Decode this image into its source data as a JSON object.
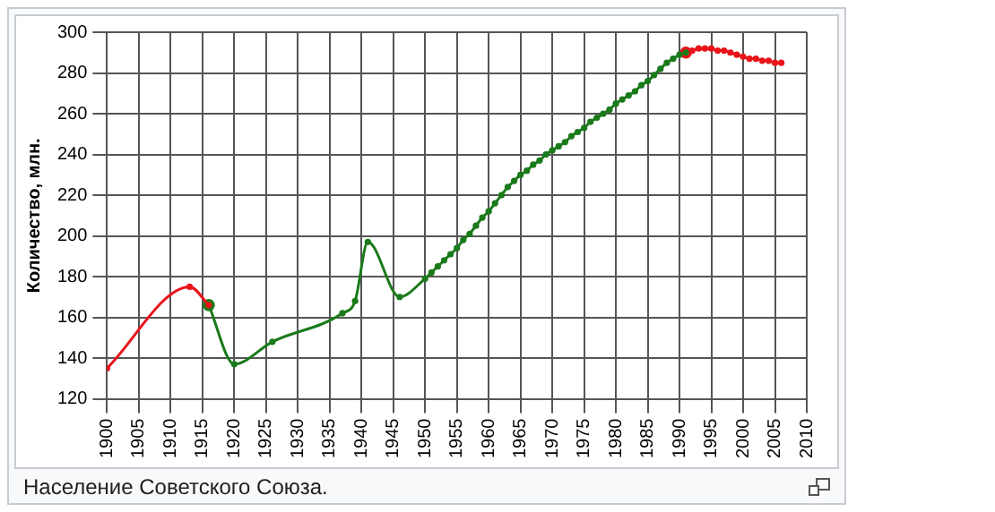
{
  "chart_data": {
    "type": "line",
    "ylabel": "Количество, млн.",
    "xlim": [
      1900,
      2010
    ],
    "xticks": [
      1900,
      1905,
      1910,
      1915,
      1920,
      1925,
      1930,
      1935,
      1940,
      1945,
      1950,
      1955,
      1960,
      1965,
      1970,
      1975,
      1980,
      1985,
      1990,
      1995,
      2000,
      2005,
      2010
    ],
    "ylim": [
      120,
      300
    ],
    "yticks": [
      120,
      140,
      160,
      180,
      200,
      220,
      240,
      260,
      280,
      300
    ],
    "grid": true,
    "legend": false,
    "marker": "circle",
    "line_style": "solid",
    "annotations": [
      "Население Советского Союза."
    ],
    "series": [
      {
        "color": "#e8141a",
        "x": [
          1900,
          1913,
          1916
        ],
        "values": [
          135,
          175,
          166
        ]
      },
      {
        "color": "#1a7a1a",
        "x": [
          1916,
          1920,
          1926,
          1937,
          1939,
          1941,
          1946,
          1950,
          1951,
          1952,
          1953,
          1954,
          1955,
          1956,
          1957,
          1958,
          1959,
          1960,
          1961,
          1962,
          1963,
          1964,
          1965,
          1966,
          1967,
          1968,
          1969,
          1970,
          1971,
          1972,
          1973,
          1974,
          1975,
          1976,
          1977,
          1978,
          1979,
          1980,
          1981,
          1982,
          1983,
          1984,
          1985,
          1986,
          1987,
          1988,
          1989,
          1990,
          1991
        ],
        "values": [
          166,
          137,
          148,
          162,
          168,
          197,
          170,
          179,
          182,
          185,
          188,
          191,
          194,
          198,
          201,
          205,
          209,
          212,
          216,
          220,
          224,
          227,
          230,
          232,
          235,
          237,
          240,
          242,
          244,
          246,
          249,
          251,
          253,
          256,
          258,
          260,
          262,
          265,
          267,
          269,
          271,
          274,
          276,
          279,
          282,
          285,
          287,
          289,
          290
        ]
      },
      {
        "color": "#e8141a",
        "x": [
          1991,
          1992,
          1993,
          1994,
          1995,
          1996,
          1997,
          1998,
          1999,
          2000,
          2001,
          2002,
          2003,
          2004,
          2005,
          2006
        ],
        "values": [
          290,
          291,
          292,
          292,
          292,
          291,
          291,
          290,
          289,
          288,
          287,
          287,
          286,
          286,
          285,
          285
        ]
      }
    ]
  }
}
